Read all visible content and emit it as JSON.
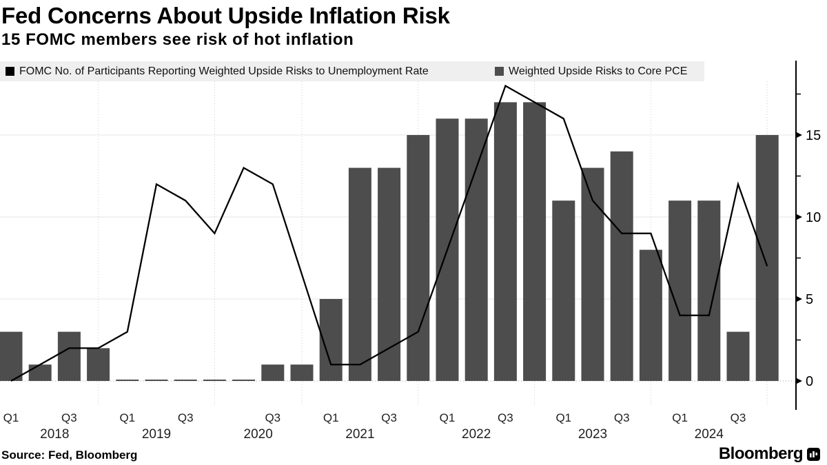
{
  "header": {
    "title": "Fed Concerns About Upside Inflation Risk",
    "subtitle": "15 FOMC members see risk of hot inflation"
  },
  "source": "Source: Fed, Bloomberg",
  "branding": "Bloomberg",
  "legend": [
    {
      "color": "#000000"
    },
    {
      "color": "#4d4d4d"
    }
  ],
  "chart_data": {
    "type": "bar",
    "title": "Fed Concerns About Upside Inflation Risk",
    "subtitle": "15 FOMC members see risk of hot inflation",
    "categories": [
      "2018 Q1",
      "2018 Q2",
      "2018 Q3",
      "2018 Q4",
      "2019 Q1",
      "2019 Q2",
      "2019 Q3",
      "2019 Q4",
      "2020 Q2",
      "2020 Q3",
      "2020 Q4",
      "2021 Q1",
      "2021 Q2",
      "2021 Q3",
      "2021 Q4",
      "2022 Q1",
      "2022 Q2",
      "2022 Q3",
      "2022 Q4",
      "2023 Q1",
      "2023 Q2",
      "2023 Q3",
      "2023 Q4",
      "2024 Q1",
      "2024 Q2",
      "2024 Q3",
      "2024 Q4"
    ],
    "series": [
      {
        "name": "FOMC No. of Participants Reporting Weighted Upside Risks to Unemployment Rate",
        "type": "line",
        "color": "#000000",
        "values": [
          0,
          1,
          2,
          2,
          3,
          12,
          11,
          9,
          13,
          12,
          6.5,
          1,
          1,
          2,
          3,
          8,
          13,
          18,
          17,
          16,
          11,
          9,
          9,
          4,
          4,
          12,
          7
        ]
      },
      {
        "name": "Weighted Upside Risks to Core PCE",
        "type": "bar",
        "color": "#4d4d4d",
        "values": [
          3,
          1,
          3,
          2,
          0,
          0,
          0,
          0,
          0,
          1,
          1,
          5,
          13,
          13,
          15,
          16,
          16,
          17,
          17,
          11,
          13,
          14,
          8,
          11,
          11,
          3,
          15
        ]
      }
    ],
    "x_tick_labels": [
      {
        "label": "Q1",
        "index": 0
      },
      {
        "label": "Q3",
        "index": 2
      },
      {
        "label": "Q1",
        "index": 4
      },
      {
        "label": "Q3",
        "index": 6
      },
      {
        "label": "Q3",
        "index": 9
      },
      {
        "label": "Q1",
        "index": 11
      },
      {
        "label": "Q3",
        "index": 13
      },
      {
        "label": "Q1",
        "index": 15
      },
      {
        "label": "Q3",
        "index": 17
      },
      {
        "label": "Q1",
        "index": 19
      },
      {
        "label": "Q3",
        "index": 21
      },
      {
        "label": "Q1",
        "index": 23
      },
      {
        "label": "Q3",
        "index": 25
      }
    ],
    "year_labels": [
      {
        "label": "2018",
        "index": 1.5
      },
      {
        "label": "2019",
        "index": 5
      },
      {
        "label": "2020",
        "index": 8.5
      },
      {
        "label": "2021",
        "index": 12
      },
      {
        "label": "2022",
        "index": 16
      },
      {
        "label": "2023",
        "index": 20
      },
      {
        "label": "2024",
        "index": 24
      }
    ],
    "y_ticks": [
      0,
      5,
      10,
      15
    ],
    "y_minor_ticks": [
      2.5,
      7.5,
      12.5,
      17.5
    ],
    "year_end_grid_indices": [
      3,
      7,
      10,
      14,
      18,
      22,
      26
    ],
    "ylim": [
      -1.5,
      18.5
    ],
    "grid": "horizontal light + dotted year-end verticals",
    "legend_position": "top"
  }
}
